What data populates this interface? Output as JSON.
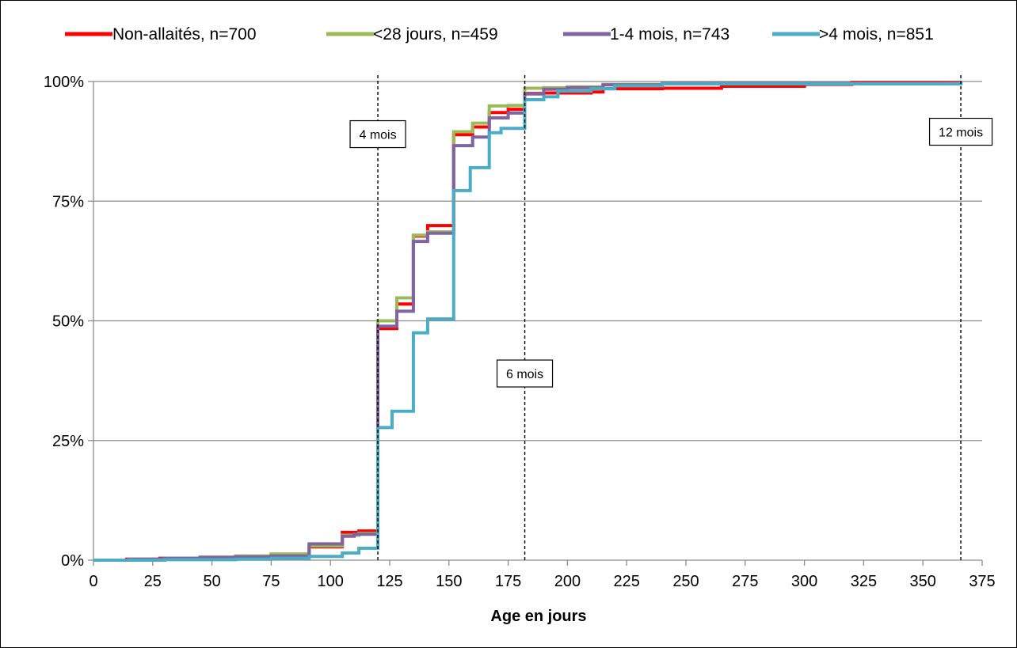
{
  "chart_data": {
    "type": "line",
    "step": true,
    "xlabel": "Age en jours",
    "ylabel": "",
    "xlim": [
      0,
      375
    ],
    "ylim": [
      0,
      100
    ],
    "xticks": [
      0,
      25,
      50,
      75,
      100,
      125,
      150,
      175,
      200,
      225,
      250,
      275,
      300,
      325,
      350,
      375
    ],
    "yticks": [
      0,
      25,
      50,
      75,
      100
    ],
    "ytick_labels": [
      "0%",
      "25%",
      "50%",
      "75%",
      "100%"
    ],
    "grid": "horizontal",
    "legend_position": "top",
    "series": [
      {
        "name": "Non-allaités, n=700",
        "color": "#ff0000",
        "points": [
          [
            0,
            0
          ],
          [
            14,
            0.2
          ],
          [
            28,
            0.4
          ],
          [
            45,
            0.6
          ],
          [
            60,
            0.8
          ],
          [
            75,
            1.2
          ],
          [
            91,
            2.8
          ],
          [
            105,
            5.8
          ],
          [
            112,
            6.1
          ],
          [
            120,
            48.4
          ],
          [
            128,
            53.5
          ],
          [
            135,
            67.7
          ],
          [
            141,
            69.9
          ],
          [
            152,
            88.9
          ],
          [
            160,
            90.5
          ],
          [
            167,
            93.5
          ],
          [
            175,
            94.2
          ],
          [
            182,
            97.5
          ],
          [
            190,
            97.6
          ],
          [
            210,
            97.8
          ],
          [
            215,
            98.5
          ],
          [
            240,
            98.6
          ],
          [
            265,
            99.0
          ],
          [
            300,
            99.4
          ],
          [
            320,
            99.8
          ],
          [
            366,
            100
          ]
        ]
      },
      {
        "name": "<28 jours, n=459",
        "color": "#9bbb59",
        "points": [
          [
            0,
            0
          ],
          [
            15,
            0.2
          ],
          [
            30,
            0.4
          ],
          [
            45,
            0.6
          ],
          [
            60,
            0.9
          ],
          [
            75,
            1.3
          ],
          [
            91,
            3.0
          ],
          [
            105,
            5.2
          ],
          [
            112,
            5.6
          ],
          [
            120,
            50.0
          ],
          [
            128,
            54.8
          ],
          [
            135,
            67.9
          ],
          [
            141,
            68.6
          ],
          [
            152,
            89.5
          ],
          [
            160,
            91.3
          ],
          [
            167,
            94.9
          ],
          [
            175,
            95.0
          ],
          [
            182,
            98.6
          ],
          [
            190,
            98.7
          ],
          [
            200,
            98.9
          ],
          [
            215,
            99.4
          ],
          [
            240,
            99.6
          ],
          [
            366,
            100
          ]
        ]
      },
      {
        "name": "1-4 mois, n=743",
        "color": "#8064a2",
        "points": [
          [
            0,
            0
          ],
          [
            15,
            0.2
          ],
          [
            30,
            0.4
          ],
          [
            45,
            0.6
          ],
          [
            60,
            0.7
          ],
          [
            75,
            0.9
          ],
          [
            91,
            3.4
          ],
          [
            105,
            5.0
          ],
          [
            110,
            5.4
          ],
          [
            120,
            48.9
          ],
          [
            128,
            52.0
          ],
          [
            135,
            66.6
          ],
          [
            141,
            68.3
          ],
          [
            152,
            86.6
          ],
          [
            160,
            88.4
          ],
          [
            167,
            92.4
          ],
          [
            175,
            93.4
          ],
          [
            182,
            97.4
          ],
          [
            190,
            98.4
          ],
          [
            200,
            98.7
          ],
          [
            215,
            99.3
          ],
          [
            240,
            99.6
          ],
          [
            366,
            100
          ]
        ]
      },
      {
        "name": ">4 mois, n=851",
        "color": "#4bacc6",
        "points": [
          [
            0,
            0
          ],
          [
            30,
            0.1
          ],
          [
            60,
            0.2
          ],
          [
            75,
            0.4
          ],
          [
            91,
            0.8
          ],
          [
            105,
            1.5
          ],
          [
            112,
            2.5
          ],
          [
            120,
            27.7
          ],
          [
            126,
            31.1
          ],
          [
            135,
            47.5
          ],
          [
            141,
            50.4
          ],
          [
            152,
            77.2
          ],
          [
            159,
            82.0
          ],
          [
            167,
            89.3
          ],
          [
            172,
            90.2
          ],
          [
            182,
            96.2
          ],
          [
            190,
            96.8
          ],
          [
            196,
            98.0
          ],
          [
            210,
            98.5
          ],
          [
            220,
            99.1
          ],
          [
            240,
            99.5
          ],
          [
            366,
            100
          ]
        ]
      }
    ],
    "reference_lines": [
      {
        "x": 120,
        "label": "4 mois",
        "label_y": 89.0
      },
      {
        "x": 182,
        "label": "6 mois",
        "label_y": 39.0
      },
      {
        "x": 366,
        "label": "12 mois",
        "label_y": 89.5
      }
    ]
  }
}
